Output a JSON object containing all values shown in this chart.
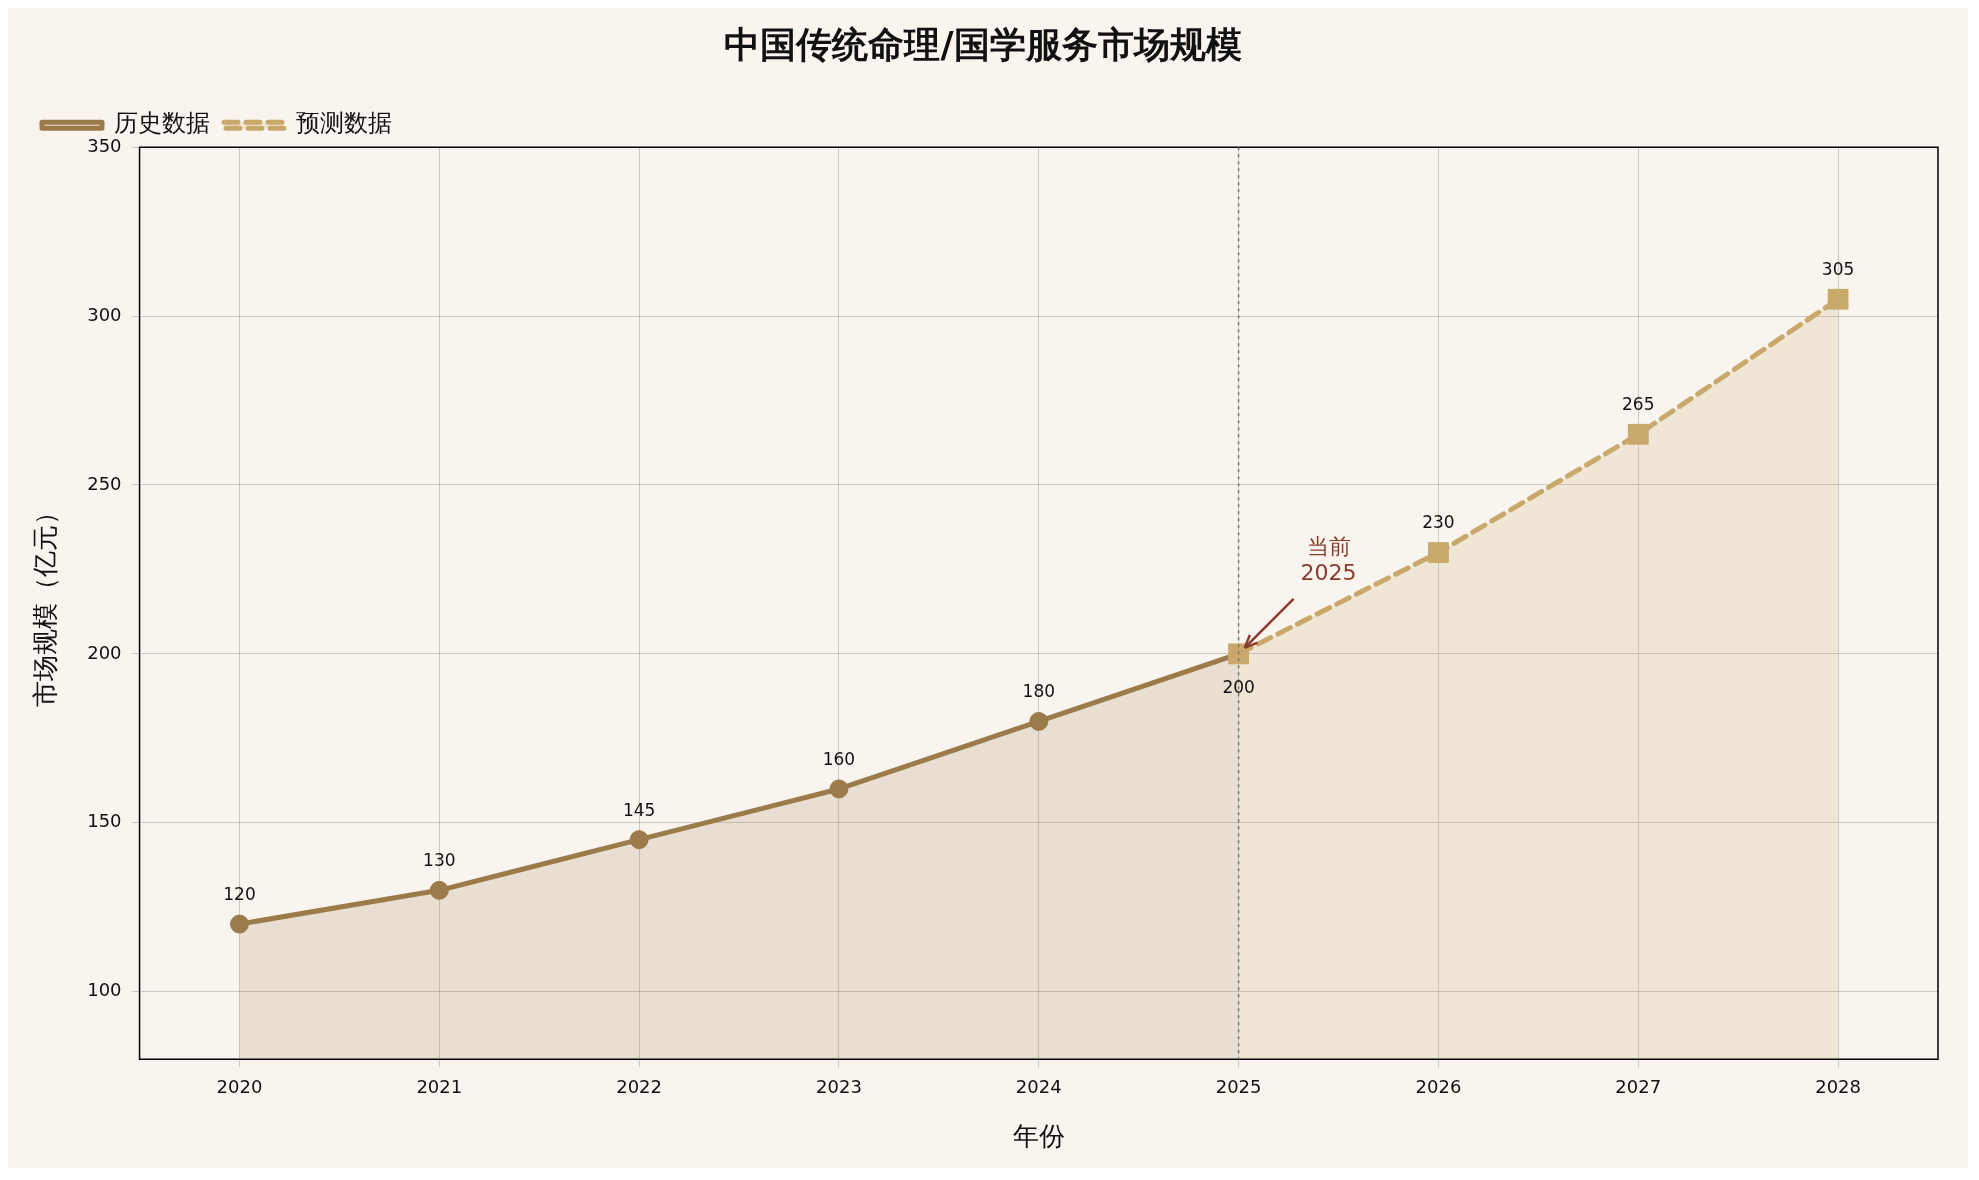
{
  "chart_data": {
    "type": "area",
    "title": "中国传统命理/国学服务市场规模",
    "xlabel": "年份",
    "ylabel": "市场规模（亿元）",
    "series": [
      {
        "name": "历史数据",
        "color": "#9c7b4b",
        "x": [
          2020,
          2021,
          2022,
          2023,
          2024,
          2025
        ],
        "values": [
          120,
          130,
          145,
          160,
          180,
          200
        ],
        "value_labels": [
          "120",
          "130",
          "145",
          "160",
          "180",
          null
        ],
        "marker": "circle",
        "line_style": "solid"
      },
      {
        "name": "预测数据",
        "color": "#c9a86c",
        "x": [
          2025,
          2026,
          2027,
          2028
        ],
        "values": [
          200,
          230,
          265,
          305
        ],
        "value_labels": [
          "200",
          "230",
          "265",
          "305"
        ],
        "marker": "square",
        "line_style": "dashed"
      }
    ],
    "xlim": [
      2019.5,
      2028.5
    ],
    "xticks": [
      2020,
      2021,
      2022,
      2023,
      2024,
      2025,
      2026,
      2027,
      2028
    ],
    "ylim": [
      80,
      350
    ],
    "yticks": [
      100,
      150,
      200,
      250,
      300,
      350
    ],
    "ref_lines": [
      {
        "axis": "x",
        "value": 2025,
        "color": "#6b7a6b",
        "line_style": "dotted"
      }
    ],
    "annotations": [
      {
        "text": "当前\n2025",
        "x": 2025,
        "y": 200
      }
    ],
    "grid": true,
    "legend": "top left"
  }
}
